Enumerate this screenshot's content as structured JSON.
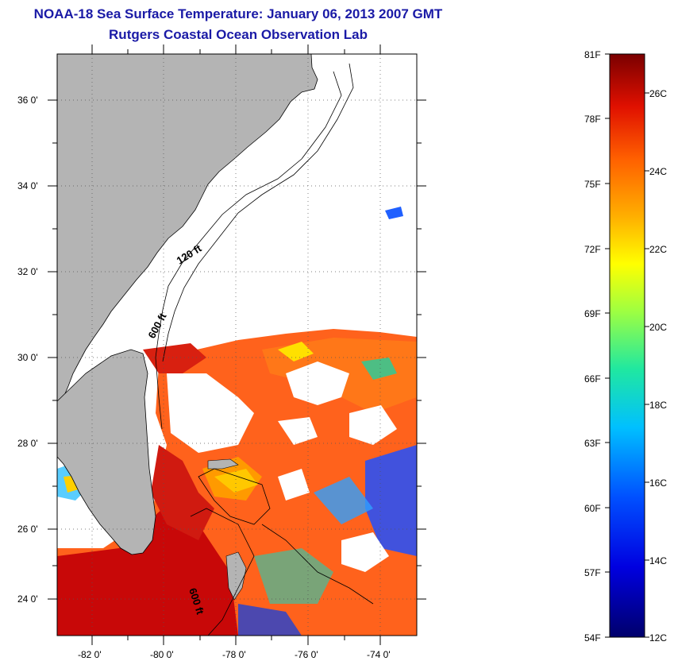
{
  "title": "NOAA-18 Sea Surface Temperature:  January 06, 2013 2007 GMT",
  "subtitle": "Rutgers Coastal Ocean Observation Lab",
  "map": {
    "lat_labels": [
      "36 0'",
      "34 0'",
      "32 0'",
      "30 0'",
      "28 0'",
      "26 0'",
      "24 0'"
    ],
    "lon_labels": [
      "-82 0'",
      "-80 0'",
      "-78 0'",
      "-76 0'",
      "-74 0'"
    ],
    "contour_labels": [
      "120 ft",
      "600 ft",
      "600 ft"
    ],
    "colors": {
      "land": "#b4b4b4",
      "cloud": "#ffffff",
      "frame": "#000000"
    }
  },
  "colorbar": {
    "f_labels": [
      "81F",
      "78F",
      "75F",
      "72F",
      "69F",
      "66F",
      "63F",
      "60F",
      "57F",
      "54F"
    ],
    "c_labels": [
      "26C",
      "24C",
      "22C",
      "20C",
      "18C",
      "16C",
      "14C",
      "12C"
    ]
  }
}
